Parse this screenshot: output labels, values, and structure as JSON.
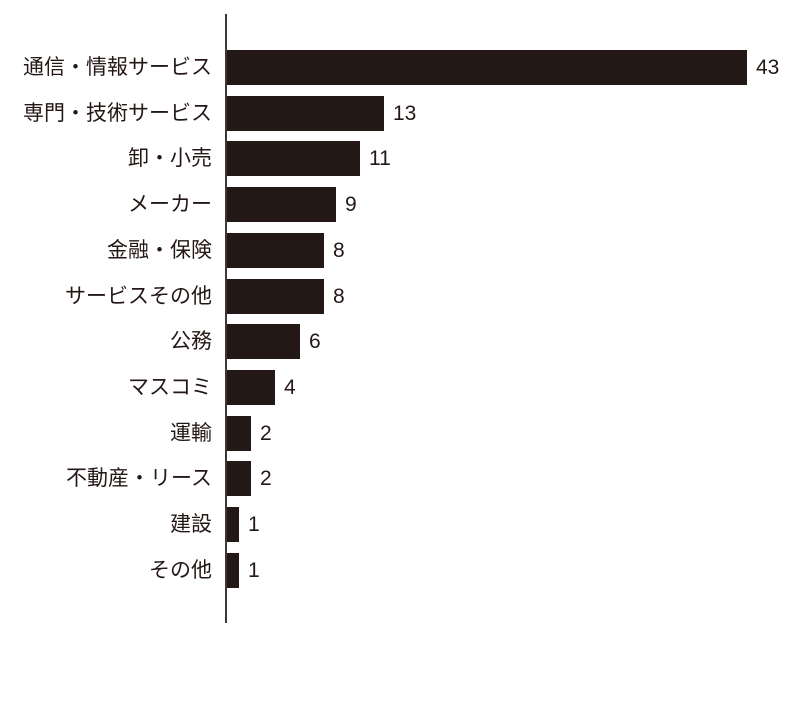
{
  "chart_data": {
    "type": "bar",
    "orientation": "horizontal",
    "title": "",
    "xlabel": "",
    "ylabel": "",
    "categories": [
      "通信・情報サービス",
      "専門・技術サービス",
      "卸・小売",
      "メーカー",
      "金融・保険",
      "サービスその他",
      "公務",
      "マスコミ",
      "運輸",
      "不動産・リース",
      "建設",
      "その他"
    ],
    "values": [
      43,
      13,
      11,
      9,
      8,
      8,
      6,
      4,
      2,
      2,
      1,
      1
    ],
    "xlim": [
      0,
      47
    ],
    "grid": false,
    "legend": false,
    "bar_color": "#231815",
    "text_color": "#231815",
    "axis_color": "#3d3634"
  }
}
